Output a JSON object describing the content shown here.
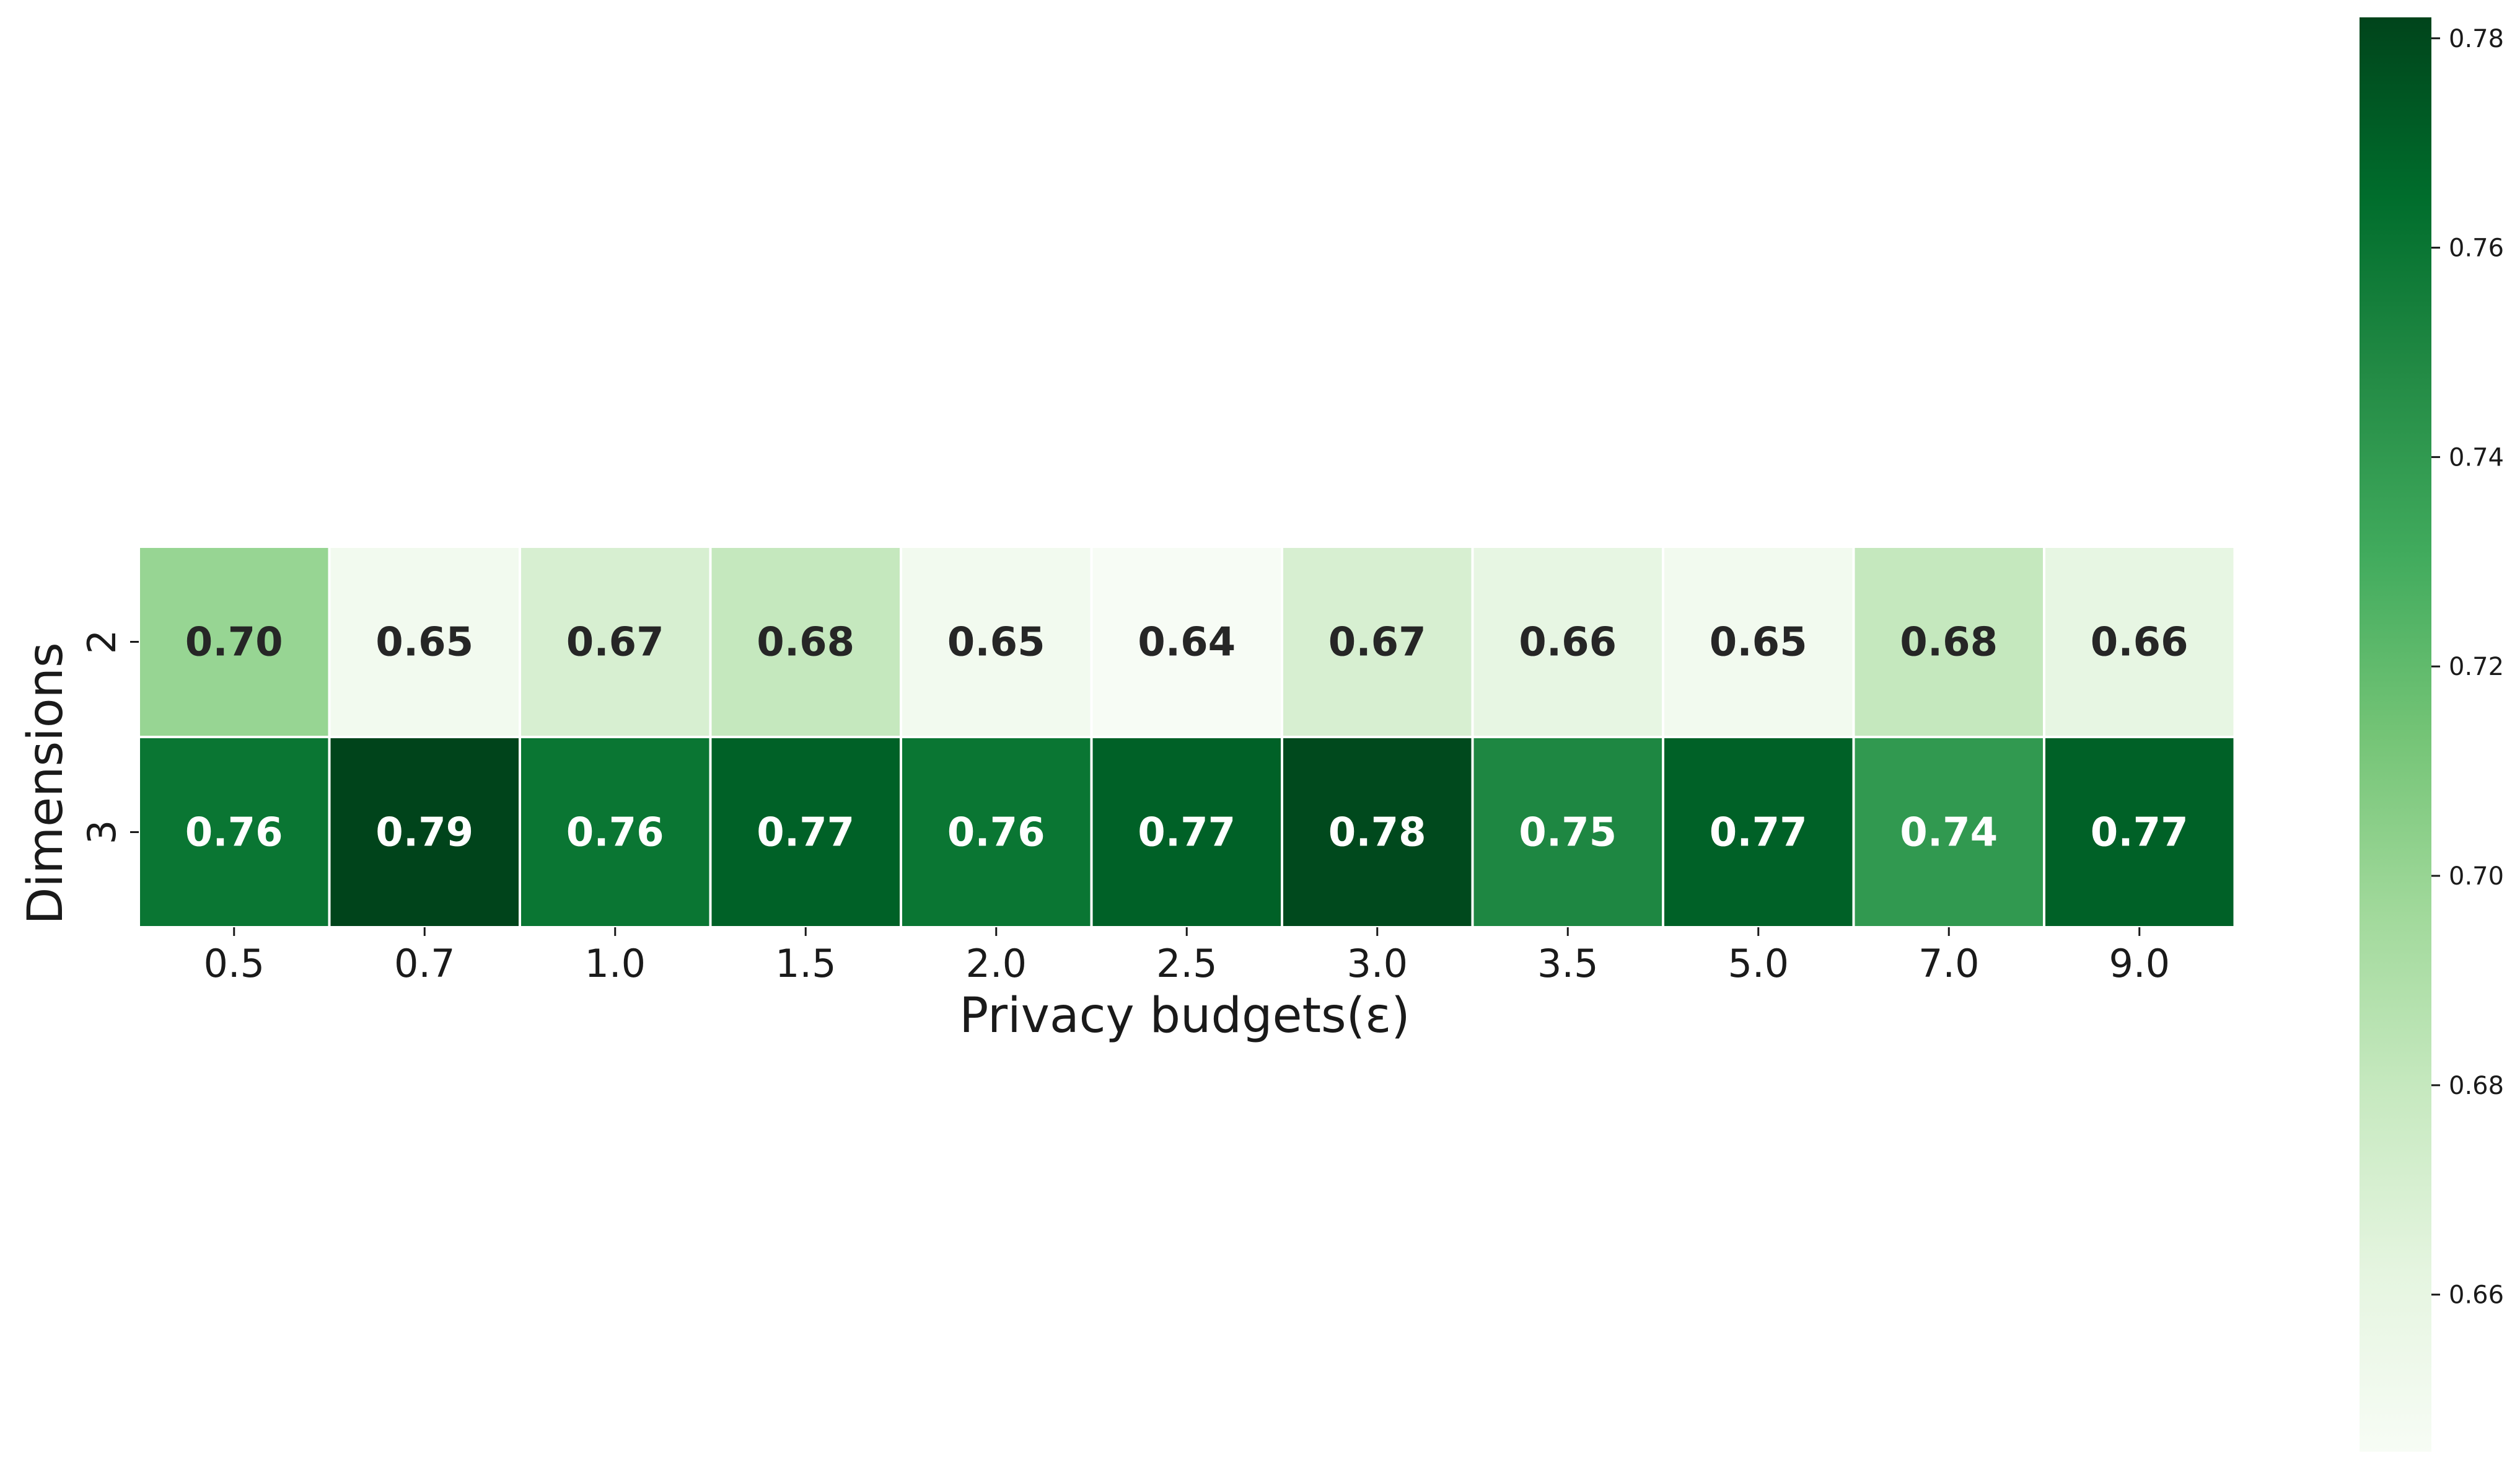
{
  "chart_data": {
    "type": "heatmap",
    "title": "",
    "xlabel": "Privacy budgets(ε)",
    "ylabel": "Dimensions",
    "x_categories": [
      "0.5",
      "0.7",
      "1.0",
      "1.5",
      "2.0",
      "2.5",
      "3.0",
      "3.5",
      "5.0",
      "7.0",
      "9.0"
    ],
    "y_categories": [
      "2",
      "3"
    ],
    "values": [
      [
        0.7,
        0.65,
        0.67,
        0.68,
        0.65,
        0.64,
        0.67,
        0.66,
        0.65,
        0.68,
        0.66
      ],
      [
        0.76,
        0.79,
        0.76,
        0.77,
        0.76,
        0.77,
        0.78,
        0.75,
        0.77,
        0.74,
        0.77
      ]
    ],
    "value_format": "0.00",
    "colormap": "Greens",
    "colorbar": {
      "range": [
        0.645,
        0.782
      ],
      "ticks": [
        "0.66",
        "0.68",
        "0.70",
        "0.72",
        "0.74",
        "0.76",
        "0.78"
      ],
      "tick_values": [
        0.66,
        0.68,
        0.7,
        0.72,
        0.74,
        0.76,
        0.78
      ]
    },
    "colors": {
      "gradient": [
        "#f7fcf5",
        "#e5f5e0",
        "#c7e9c0",
        "#a1d99b",
        "#74c476",
        "#41ab5d",
        "#238b45",
        "#006d2c",
        "#00441b"
      ],
      "dark_text": "#262626",
      "light_text": "#ffffff"
    }
  }
}
